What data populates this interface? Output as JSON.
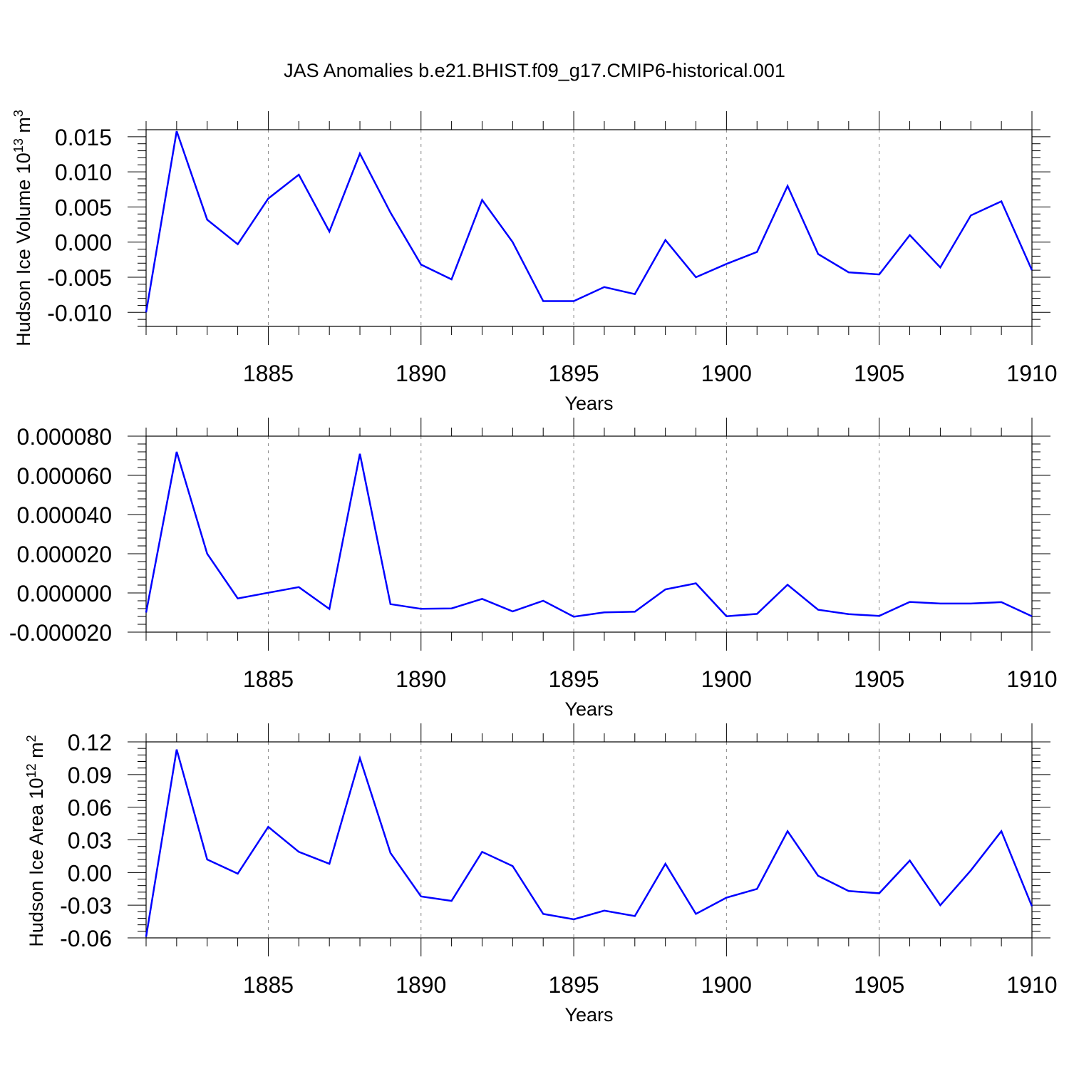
{
  "title": "JAS Anomalies b.e21.BHIST.f09_g17.CMIP6-historical.001",
  "colors": {
    "line": "#0000ff",
    "axis": "#000000",
    "grid": "#888888"
  },
  "chart_data": [
    {
      "type": "line",
      "xlabel": "Years",
      "ylabel": {
        "main": "Hudson Ice Volume 10",
        "sup": "13",
        "tail": " m",
        "sup2": "3"
      },
      "xlim": [
        1881,
        1910
      ],
      "ylim": [
        -0.012,
        0.016
      ],
      "yticks": [
        "0.015",
        "0.010",
        "0.005",
        "0.000",
        "-0.005",
        "-0.010"
      ],
      "ytick_values": [
        0.015,
        0.01,
        0.005,
        0.0,
        -0.005,
        -0.01
      ],
      "xticks": [
        "1885",
        "1890",
        "1895",
        "1900",
        "1905",
        "1910"
      ],
      "xtick_values": [
        1885,
        1890,
        1895,
        1900,
        1905,
        1910
      ],
      "x": [
        1881,
        1882,
        1883,
        1884,
        1885,
        1886,
        1887,
        1888,
        1889,
        1890,
        1891,
        1892,
        1893,
        1894,
        1895,
        1896,
        1897,
        1898,
        1899,
        1900,
        1901,
        1902,
        1903,
        1904,
        1905,
        1906,
        1907,
        1908,
        1909,
        1910
      ],
      "y": [
        -0.01,
        0.0158,
        0.0032,
        -0.0003,
        0.0062,
        0.0096,
        0.0015,
        0.0126,
        0.0042,
        -0.0032,
        -0.0053,
        0.006,
        0.0,
        -0.0084,
        -0.0084,
        -0.0064,
        -0.0074,
        0.0003,
        -0.005,
        -0.0031,
        -0.0014,
        0.008,
        -0.0017,
        -0.0043,
        -0.0046,
        0.001,
        -0.0036,
        0.0038,
        0.0058,
        -0.004
      ]
    },
    {
      "type": "line",
      "xlabel": "Years",
      "ylabel": null,
      "xlim": [
        1881,
        1910
      ],
      "ylim": [
        -2e-05,
        8e-05
      ],
      "yticks": [
        "0.000080",
        "0.000060",
        "0.000040",
        "0.000020",
        "0.000000",
        "-0.000020"
      ],
      "ytick_values": [
        8e-05,
        6e-05,
        4e-05,
        2e-05,
        0.0,
        -2e-05
      ],
      "xticks": [
        "1885",
        "1890",
        "1895",
        "1900",
        "1905",
        "1910"
      ],
      "xtick_values": [
        1885,
        1890,
        1895,
        1900,
        1905,
        1910
      ],
      "x": [
        1881,
        1882,
        1883,
        1884,
        1885,
        1886,
        1887,
        1888,
        1889,
        1890,
        1891,
        1892,
        1893,
        1894,
        1895,
        1896,
        1897,
        1898,
        1899,
        1900,
        1901,
        1902,
        1903,
        1904,
        1905,
        1906,
        1907,
        1908,
        1909,
        1910
      ],
      "y": [
        -1e-05,
        7.2e-05,
        2e-05,
        -2.8e-06,
        1e-07,
        3e-06,
        -8.2e-06,
        7.1e-05,
        -5.7e-06,
        -8.1e-06,
        -7.9e-06,
        -3e-06,
        -9.4e-06,
        -4e-06,
        -1.21e-05,
        -9.9e-06,
        -9.6e-06,
        1.8e-06,
        4.9e-06,
        -1.19e-05,
        -1.07e-05,
        4.2e-06,
        -8.6e-06,
        -1.08e-05,
        -1.17e-05,
        -4.6e-06,
        -5.4e-06,
        -5.4e-06,
        -4.7e-06,
        -1.19e-05
      ]
    },
    {
      "type": "line",
      "xlabel": "Years",
      "ylabel": {
        "main": "Hudson Ice Area 10",
        "sup": "12",
        "tail": " m",
        "sup2": "2"
      },
      "xlim": [
        1881,
        1910
      ],
      "ylim": [
        -0.06,
        0.12
      ],
      "yticks": [
        "0.12",
        "0.09",
        "0.06",
        "0.03",
        "0.00",
        "-0.03",
        "-0.06"
      ],
      "ytick_values": [
        0.12,
        0.09,
        0.06,
        0.03,
        0.0,
        -0.03,
        -0.06
      ],
      "xticks": [
        "1885",
        "1890",
        "1895",
        "1900",
        "1905",
        "1910"
      ],
      "xtick_values": [
        1885,
        1890,
        1895,
        1900,
        1905,
        1910
      ],
      "x": [
        1881,
        1882,
        1883,
        1884,
        1885,
        1886,
        1887,
        1888,
        1889,
        1890,
        1891,
        1892,
        1893,
        1894,
        1895,
        1896,
        1897,
        1898,
        1899,
        1900,
        1901,
        1902,
        1903,
        1904,
        1905,
        1906,
        1907,
        1908,
        1909,
        1910
      ],
      "y": [
        -0.059,
        0.113,
        0.012,
        -0.001,
        0.042,
        0.019,
        0.008,
        0.105,
        0.018,
        -0.022,
        -0.026,
        0.019,
        0.006,
        -0.038,
        -0.043,
        -0.035,
        -0.04,
        0.008,
        -0.038,
        -0.023,
        -0.015,
        0.038,
        -0.003,
        -0.017,
        -0.019,
        0.011,
        -0.03,
        0.002,
        0.038,
        -0.031
      ]
    }
  ]
}
